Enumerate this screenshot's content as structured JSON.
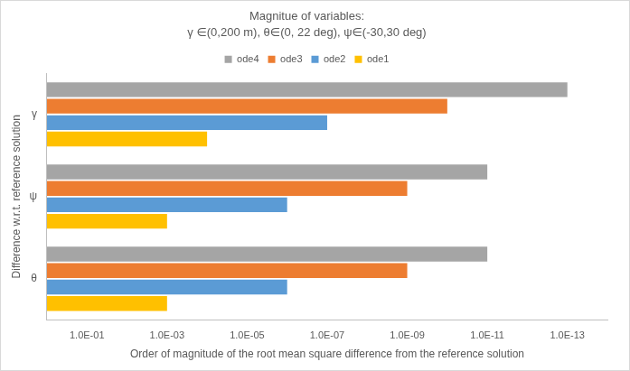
{
  "chart_data": {
    "type": "bar",
    "orientation": "horizontal",
    "title": "Magnitue of variables:",
    "subtitle": "γ ∈(0,200 m), θ∈(0, 22 deg), ψ∈(-30,30 deg)",
    "x_label": "Order of magnitude of the root mean square difference from the reference solution",
    "y_label": "Difference w.r.t. reference solution",
    "categories": [
      "γ",
      "ψ",
      "θ"
    ],
    "series": [
      {
        "name": "ode4",
        "color": "#a5a5a5",
        "values": [
          1e-13,
          1e-11,
          1e-11
        ]
      },
      {
        "name": "ode3",
        "color": "#ed7d31",
        "values": [
          1e-10,
          1e-09,
          1e-09
        ]
      },
      {
        "name": "ode2",
        "color": "#5b9bd5",
        "values": [
          1e-07,
          1e-06,
          1e-06
        ]
      },
      {
        "name": "ode1",
        "color": "#ffc000",
        "values": [
          0.0001,
          0.001,
          0.001
        ]
      }
    ],
    "log": "x",
    "xlim": [
      1,
      1e-14
    ],
    "xticks": [
      {
        "value": 0.1,
        "label": "1.0E-01"
      },
      {
        "value": 0.001,
        "label": "1.0E-03"
      },
      {
        "value": 1e-05,
        "label": "1.0E-05"
      },
      {
        "value": 1e-07,
        "label": "1.0E-07"
      },
      {
        "value": 1e-09,
        "label": "1.0E-09"
      },
      {
        "value": 1e-11,
        "label": "1.0E-11"
      },
      {
        "value": 1e-13,
        "label": "1.0E-13"
      }
    ],
    "grid": false,
    "legend": "top"
  }
}
